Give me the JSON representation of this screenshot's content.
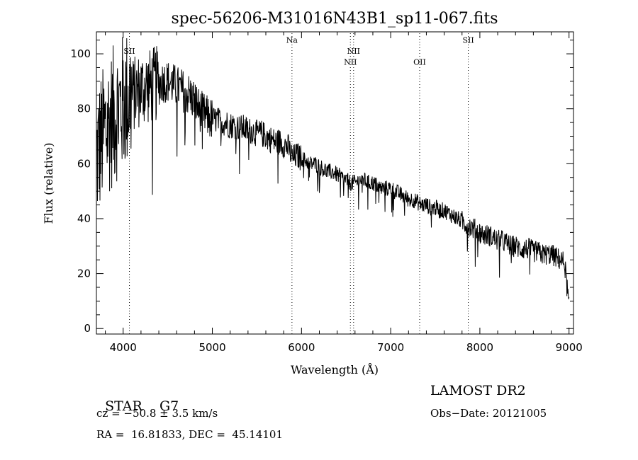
{
  "chart_data": {
    "type": "line",
    "title": "spec-56206-M31016N43B1_sp11-067.fits",
    "xlabel": "Wavelength (Å)",
    "ylabel": "Flux (relative)",
    "xlim": [
      3700,
      9050
    ],
    "ylim": [
      -2,
      108
    ],
    "xticks": [
      4000,
      5000,
      6000,
      7000,
      8000,
      9000
    ],
    "yticks": [
      0,
      20,
      40,
      60,
      80,
      100
    ],
    "grid": false,
    "lines": [
      {
        "label": "SII",
        "x": 4070,
        "label_y": 100
      },
      {
        "label": "Na",
        "x": 5893,
        "label_y": 104
      },
      {
        "label": "NII",
        "x": 6548,
        "label_y": 96
      },
      {
        "label": "NII",
        "x": 6584,
        "label_y": 100
      },
      {
        "label": "OII",
        "x": 7325,
        "label_y": 96
      },
      {
        "label": "SII",
        "x": 7870,
        "label_y": 104
      }
    ],
    "series": [
      {
        "x": [
          3700,
          3750,
          3800,
          3850,
          3900,
          3950,
          4000,
          4050,
          4100,
          4150,
          4200,
          4250,
          4300,
          4350,
          4400,
          4450,
          4500,
          4550,
          4600,
          4650,
          4700,
          4750,
          4800,
          4850,
          4900,
          4950,
          5000,
          5050,
          5100,
          5150,
          5200,
          5250,
          5300,
          5350,
          5400,
          5450,
          5500,
          5550,
          5600,
          5650,
          5700,
          5750,
          5800,
          5850,
          5900,
          5950,
          6000,
          6050,
          6100,
          6150,
          6200,
          6250,
          6300,
          6350,
          6400,
          6450,
          6500,
          6550,
          6600,
          6650,
          6700,
          6750,
          6800,
          6850,
          6900,
          6950,
          7000,
          7050,
          7100,
          7150,
          7200,
          7250,
          7300,
          7350,
          7400,
          7450,
          7500,
          7550,
          7600,
          7650,
          7700,
          7750,
          7800,
          7850,
          7900,
          7950,
          8000,
          8050,
          8100,
          8150,
          8200,
          8250,
          8300,
          8350,
          8400,
          8450,
          8500,
          8550,
          8600,
          8650,
          8700,
          8750,
          8800,
          8850,
          8900,
          8950,
          9000
        ],
        "y": [
          62,
          68,
          72,
          75,
          78,
          80,
          82,
          84,
          85,
          86,
          87,
          88,
          88,
          89,
          89,
          90,
          90,
          89,
          88,
          87,
          86,
          85,
          83,
          80,
          78,
          77,
          76,
          76,
          75,
          75,
          74,
          74,
          73,
          73,
          72,
          72,
          71,
          71,
          70,
          69,
          68,
          68,
          67,
          66,
          62,
          63,
          62,
          61,
          60,
          60,
          59,
          58,
          57,
          57,
          56,
          55,
          54,
          53,
          53,
          54,
          54,
          53,
          53,
          52,
          51,
          51,
          51,
          50,
          49,
          48,
          47,
          47,
          46,
          45,
          45,
          44,
          44,
          43,
          43,
          42,
          41,
          40,
          39,
          38,
          37,
          36,
          35,
          34,
          34,
          33,
          32,
          32,
          31,
          30,
          30,
          29,
          29,
          29,
          28,
          28,
          27,
          27,
          27,
          26,
          25,
          24,
          8
        ]
      }
    ]
  },
  "info": {
    "object_class": "STAR",
    "subclass": "G7",
    "survey": "LAMOST DR2",
    "cz": "cz = −50.8 ± 3.5 km/s",
    "obs_date": "Obs−Date: 20121005",
    "coords": "RA =  16.81833, DEC =  45.14101"
  }
}
